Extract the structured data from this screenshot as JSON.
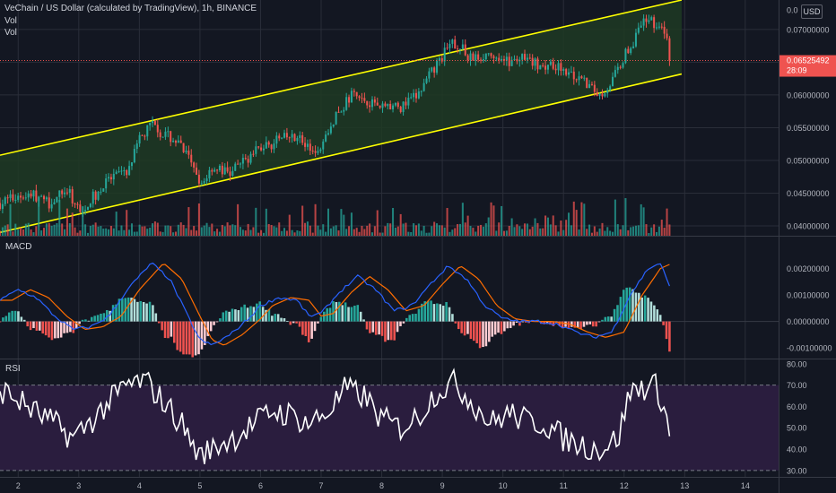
{
  "header": {
    "symbol_title": "VeChain / US Dollar (calculated by TradingView), 1h, BINANCE",
    "vol_label_1": "Vol",
    "vol_label_2": "Vol",
    "currency_badge": "USD"
  },
  "price_axis": {
    "top_label_partial": "0.0",
    "current_price": "0.06525492",
    "countdown": "28:09"
  },
  "panes": {
    "macd_label": "MACD",
    "rsi_label": "RSI"
  },
  "colors": {
    "background": "#131722",
    "grid": "#2a2e39",
    "up": "#26a69a",
    "down": "#ef5350",
    "channel_line": "#ffff00",
    "channel_fill": "#1e3a23",
    "macd_line": "#2962ff",
    "signal_line": "#ff6d00",
    "rsi_line": "#ffffff",
    "rsi_band": "#2a1d3e",
    "price_tag": "#ef5350"
  },
  "chart_data": [
    {
      "type": "candlestick",
      "title": "VeChain / US Dollar (calculated by TradingView), 1h, BINANCE",
      "x_ticks": [
        "2",
        "3",
        "4",
        "5",
        "6",
        "7",
        "8",
        "9",
        "10",
        "11",
        "12",
        "13",
        "14"
      ],
      "y_ticks": [
        "0.07000000",
        "0.06500000",
        "0.06000000",
        "0.05500000",
        "0.05000000",
        "0.04500000",
        "0.04000000"
      ],
      "ylim": [
        0.0385,
        0.0745
      ],
      "last_price": 0.06525492,
      "channel": {
        "upper": [
          [
            1.7,
            0.0508
          ],
          [
            12.95,
            0.0745
          ]
        ],
        "lower": [
          [
            1.7,
            0.039
          ],
          [
            12.95,
            0.0632
          ]
        ]
      },
      "price_path": [
        [
          1.7,
          0.0435
        ],
        [
          2.0,
          0.0445
        ],
        [
          2.2,
          0.045
        ],
        [
          2.5,
          0.0435
        ],
        [
          2.8,
          0.0455
        ],
        [
          3.0,
          0.0425
        ],
        [
          3.2,
          0.044
        ],
        [
          3.5,
          0.047
        ],
        [
          3.8,
          0.048
        ],
        [
          4.0,
          0.053
        ],
        [
          4.2,
          0.0555
        ],
        [
          4.4,
          0.054
        ],
        [
          4.6,
          0.053
        ],
        [
          4.8,
          0.0505
        ],
        [
          5.0,
          0.046
        ],
        [
          5.2,
          0.049
        ],
        [
          5.5,
          0.048
        ],
        [
          5.8,
          0.0505
        ],
        [
          6.0,
          0.052
        ],
        [
          6.3,
          0.053
        ],
        [
          6.6,
          0.054
        ],
        [
          6.8,
          0.0515
        ],
        [
          7.0,
          0.0525
        ],
        [
          7.2,
          0.056
        ],
        [
          7.5,
          0.06
        ],
        [
          7.8,
          0.059
        ],
        [
          8.0,
          0.0585
        ],
        [
          8.3,
          0.058
        ],
        [
          8.6,
          0.06
        ],
        [
          8.8,
          0.063
        ],
        [
          9.0,
          0.066
        ],
        [
          9.2,
          0.068
        ],
        [
          9.5,
          0.0655
        ],
        [
          9.8,
          0.0665
        ],
        [
          10.0,
          0.065
        ],
        [
          10.3,
          0.0655
        ],
        [
          10.6,
          0.0645
        ],
        [
          10.8,
          0.065
        ],
        [
          11.0,
          0.064
        ],
        [
          11.2,
          0.0625
        ],
        [
          11.4,
          0.0615
        ],
        [
          11.6,
          0.06
        ],
        [
          11.8,
          0.062
        ],
        [
          12.0,
          0.066
        ],
        [
          12.2,
          0.069
        ],
        [
          12.4,
          0.072
        ],
        [
          12.55,
          0.0705
        ],
        [
          12.7,
          0.069
        ],
        [
          12.75,
          0.0653
        ]
      ],
      "volume_bars": 260
    },
    {
      "type": "line",
      "title": "MACD",
      "y_ticks": [
        "0.00200000",
        "0.00100000",
        "0.00000000",
        "-0.00100000"
      ],
      "ylim": [
        -0.0014,
        0.0032
      ],
      "macd_path": [
        [
          1.7,
          0.0008
        ],
        [
          2.0,
          0.0012
        ],
        [
          2.3,
          0.0009
        ],
        [
          2.6,
          0.0002
        ],
        [
          2.9,
          -0.0003
        ],
        [
          3.2,
          -0.0002
        ],
        [
          3.5,
          0.0002
        ],
        [
          3.8,
          0.0012
        ],
        [
          4.2,
          0.0022
        ],
        [
          4.5,
          0.0016
        ],
        [
          4.8,
          0.0002
        ],
        [
          5.0,
          -0.0007
        ],
        [
          5.2,
          -0.0009
        ],
        [
          5.5,
          -0.0005
        ],
        [
          5.8,
          0.0001
        ],
        [
          6.0,
          0.0006
        ],
        [
          6.3,
          0.0009
        ],
        [
          6.6,
          0.0008
        ],
        [
          6.8,
          0.0002
        ],
        [
          7.0,
          0.0003
        ],
        [
          7.3,
          0.0011
        ],
        [
          7.6,
          0.0017
        ],
        [
          7.9,
          0.0012
        ],
        [
          8.2,
          0.0004
        ],
        [
          8.5,
          0.0006
        ],
        [
          8.8,
          0.0014
        ],
        [
          9.1,
          0.0021
        ],
        [
          9.4,
          0.0016
        ],
        [
          9.7,
          0.0006
        ],
        [
          10.0,
          0.0001
        ],
        [
          10.3,
          0.0
        ],
        [
          10.6,
          0.0
        ],
        [
          10.9,
          -0.0001
        ],
        [
          11.2,
          -0.0004
        ],
        [
          11.5,
          -0.0006
        ],
        [
          11.8,
          -0.0004
        ],
        [
          12.1,
          0.001
        ],
        [
          12.4,
          0.002
        ],
        [
          12.6,
          0.0022
        ],
        [
          12.75,
          0.0013
        ]
      ],
      "signal_lag": 0.2,
      "histogram_bars": 220
    },
    {
      "type": "line",
      "title": "RSI",
      "y_ticks": [
        "80.00",
        "70.00",
        "60.00",
        "50.00",
        "40.00",
        "30.00"
      ],
      "ylim": [
        27,
        82
      ],
      "band": [
        30,
        70
      ],
      "rsi_path": [
        [
          1.7,
          68
        ],
        [
          2.0,
          63
        ],
        [
          2.3,
          57
        ],
        [
          2.6,
          52
        ],
        [
          2.9,
          45
        ],
        [
          3.2,
          53
        ],
        [
          3.5,
          62
        ],
        [
          3.8,
          70
        ],
        [
          4.1,
          72
        ],
        [
          4.4,
          62
        ],
        [
          4.7,
          52
        ],
        [
          5.0,
          36
        ],
        [
          5.3,
          42
        ],
        [
          5.6,
          46
        ],
        [
          5.9,
          52
        ],
        [
          6.2,
          58
        ],
        [
          6.5,
          56
        ],
        [
          6.8,
          52
        ],
        [
          7.1,
          57
        ],
        [
          7.4,
          68
        ],
        [
          7.7,
          65
        ],
        [
          8.0,
          54
        ],
        [
          8.3,
          50
        ],
        [
          8.6,
          55
        ],
        [
          8.9,
          67
        ],
        [
          9.2,
          71
        ],
        [
          9.5,
          62
        ],
        [
          9.8,
          52
        ],
        [
          10.1,
          57
        ],
        [
          10.4,
          53
        ],
        [
          10.7,
          52
        ],
        [
          11.0,
          45
        ],
        [
          11.3,
          42
        ],
        [
          11.6,
          40
        ],
        [
          11.9,
          45
        ],
        [
          12.1,
          67
        ],
        [
          12.3,
          69
        ],
        [
          12.5,
          70
        ],
        [
          12.65,
          62
        ],
        [
          12.75,
          46
        ]
      ]
    }
  ]
}
